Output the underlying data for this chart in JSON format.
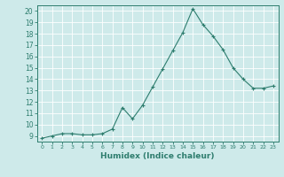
{
  "x": [
    0,
    1,
    2,
    3,
    4,
    5,
    6,
    7,
    8,
    9,
    10,
    11,
    12,
    13,
    14,
    15,
    16,
    17,
    18,
    19,
    20,
    21,
    22,
    23
  ],
  "y": [
    8.8,
    9.0,
    9.2,
    9.2,
    9.1,
    9.1,
    9.2,
    9.6,
    11.5,
    10.5,
    11.7,
    13.3,
    14.9,
    16.5,
    18.1,
    20.2,
    18.8,
    17.8,
    16.6,
    15.0,
    14.0,
    13.2,
    13.2,
    13.4
  ],
  "line_color": "#2e7d6e",
  "marker": "+",
  "marker_size": 3,
  "xlabel": "Humidex (Indice chaleur)",
  "xlim": [
    -0.5,
    23.5
  ],
  "ylim": [
    8.5,
    20.5
  ],
  "yticks": [
    9,
    10,
    11,
    12,
    13,
    14,
    15,
    16,
    17,
    18,
    19,
    20
  ],
  "xticks": [
    0,
    1,
    2,
    3,
    4,
    5,
    6,
    7,
    8,
    9,
    10,
    11,
    12,
    13,
    14,
    15,
    16,
    17,
    18,
    19,
    20,
    21,
    22,
    23
  ],
  "bg_color": "#ceeaea",
  "grid_color": "#b8d8d8",
  "tick_label_color": "#2e7d6e",
  "label_color": "#2e7d6e"
}
